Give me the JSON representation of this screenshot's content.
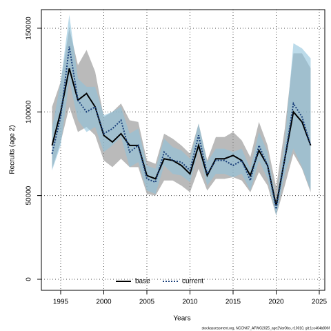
{
  "chart_data": {
    "type": "line",
    "x_label": "Years",
    "y_label": "Recruits (age 2)",
    "footer": "stockassessment.org, NCCN67_AFWG2025_age2VarObs, r10010, git:1cc464b806f",
    "x": [
      1994,
      1995,
      1996,
      1997,
      1998,
      1999,
      2000,
      2001,
      2002,
      2003,
      2004,
      2005,
      2006,
      2007,
      2008,
      2009,
      2010,
      2011,
      2012,
      2013,
      2014,
      2015,
      2016,
      2017,
      2018,
      2019,
      2020,
      2021,
      2022,
      2023,
      2024
    ],
    "series": [
      {
        "name": "base",
        "color": "#000000",
        "band_color": "#8c8c8c",
        "linestyle": "solid",
        "values": [
          80000,
          100000,
          126000,
          107000,
          111000,
          103000,
          86000,
          82000,
          87000,
          80000,
          80000,
          62000,
          60000,
          72000,
          71000,
          68000,
          63000,
          80000,
          62000,
          72000,
          72000,
          74000,
          71000,
          62000,
          77000,
          68000,
          44000,
          72000,
          100000,
          94000,
          80000
        ],
        "upper": [
          103000,
          118000,
          150000,
          128000,
          137000,
          124000,
          97000,
          100000,
          105000,
          95000,
          94000,
          71000,
          69000,
          87000,
          84000,
          80000,
          75000,
          93000,
          71000,
          85000,
          85000,
          88000,
          83000,
          73000,
          94000,
          80000,
          55000,
          90000,
          135000,
          135000,
          126000
        ],
        "lower": [
          66000,
          82000,
          103000,
          88000,
          91000,
          86000,
          71000,
          67000,
          72000,
          67000,
          67000,
          51000,
          50000,
          59000,
          59000,
          56000,
          52000,
          66000,
          53000,
          60000,
          60000,
          61000,
          59000,
          52000,
          64000,
          56000,
          38000,
          56000,
          75000,
          66000,
          52000
        ]
      },
      {
        "name": "current",
        "color": "#1a3f7a",
        "band_color": "#8fc3dc",
        "linestyle": "dotted",
        "values": [
          75000,
          97000,
          139000,
          107000,
          100000,
          103000,
          87000,
          90000,
          95000,
          76000,
          80000,
          60000,
          58000,
          76000,
          71000,
          70000,
          65000,
          86000,
          63000,
          71000,
          71000,
          68000,
          71000,
          59000,
          80000,
          68000,
          42000,
          72000,
          105000,
          97000,
          80000
        ],
        "upper": [
          90000,
          118000,
          158000,
          120000,
          115000,
          115000,
          98000,
          100000,
          103000,
          87000,
          90000,
          68000,
          66000,
          84000,
          79000,
          77000,
          72000,
          93000,
          70000,
          78000,
          78000,
          76000,
          78000,
          66000,
          88000,
          76000,
          47000,
          82000,
          141000,
          138000,
          132000
        ],
        "lower": [
          65000,
          80000,
          119000,
          95000,
          88000,
          91000,
          76000,
          80000,
          85000,
          67000,
          70000,
          53000,
          51000,
          68000,
          63000,
          62000,
          58000,
          77000,
          56000,
          63000,
          63000,
          61000,
          63000,
          53000,
          71000,
          60000,
          38000,
          63000,
          78000,
          67000,
          53000
        ]
      }
    ],
    "xlim": [
      1992.76,
      2025.64
    ],
    "ylim": [
      -6600,
      161100
    ],
    "xticks": [
      1995,
      2000,
      2005,
      2010,
      2015,
      2020,
      2025
    ],
    "yticks": [
      0,
      50000,
      100000,
      150000
    ],
    "grid": true,
    "legend": "bottom"
  }
}
